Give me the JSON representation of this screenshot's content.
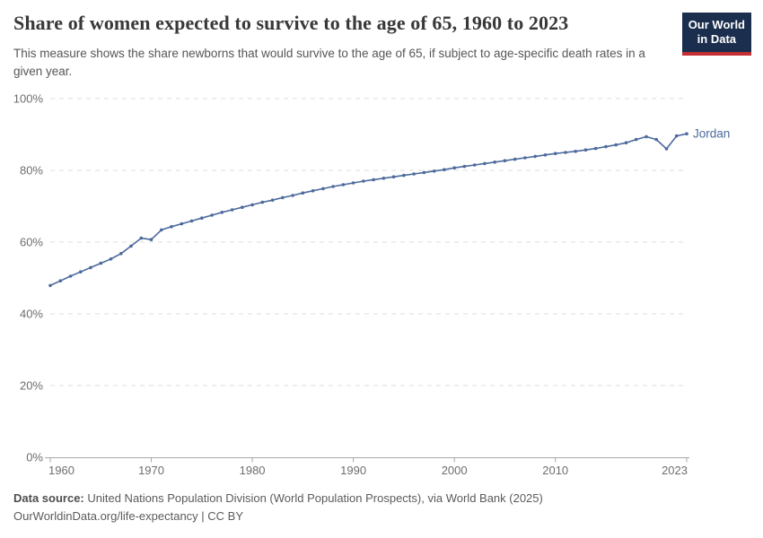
{
  "header": {
    "title": "Share of women expected to survive to the age of 65, 1960 to 2023",
    "subtitle": "This measure shows the share newborns that would survive to the age of 65, if subject to age-specific death rates in a given year.",
    "logo": {
      "line1": "Our World",
      "line2": "in Data",
      "bg_color": "#1b2e4e",
      "accent_color": "#c52f33"
    }
  },
  "chart_data": {
    "type": "line",
    "title": "Share of women expected to survive to the age of 65, 1960 to 2023",
    "xlabel": "",
    "ylabel": "",
    "xlim": [
      1960,
      2023
    ],
    "ylim": [
      0,
      100
    ],
    "grid": "horizontal-dashed",
    "legend_position": "end-of-line-label",
    "x_ticks": [
      1960,
      1970,
      1980,
      1990,
      2000,
      2010,
      2023
    ],
    "x_tick_labels": [
      "1960",
      "1970",
      "1980",
      "1990",
      "2000",
      "2010",
      "2023"
    ],
    "y_ticks": [
      0,
      20,
      40,
      60,
      80,
      100
    ],
    "y_tick_labels": [
      "0%",
      "20%",
      "40%",
      "60%",
      "80%",
      "100%"
    ],
    "series": [
      {
        "name": "Jordan",
        "color": "#4c6a9c",
        "x": [
          1960,
          1961,
          1962,
          1963,
          1964,
          1965,
          1966,
          1967,
          1968,
          1969,
          1970,
          1971,
          1972,
          1973,
          1974,
          1975,
          1976,
          1977,
          1978,
          1979,
          1980,
          1981,
          1982,
          1983,
          1984,
          1985,
          1986,
          1987,
          1988,
          1989,
          1990,
          1991,
          1992,
          1993,
          1994,
          1995,
          1996,
          1997,
          1998,
          1999,
          2000,
          2001,
          2002,
          2003,
          2004,
          2005,
          2006,
          2007,
          2008,
          2009,
          2010,
          2011,
          2012,
          2013,
          2014,
          2015,
          2016,
          2017,
          2018,
          2019,
          2020,
          2021,
          2022,
          2023
        ],
        "values": [
          47.9,
          49.2,
          50.5,
          51.7,
          52.9,
          54.1,
          55.3,
          56.8,
          58.9,
          61.1,
          60.7,
          63.4,
          64.3,
          65.1,
          65.9,
          66.7,
          67.5,
          68.3,
          69.0,
          69.7,
          70.4,
          71.1,
          71.7,
          72.4,
          73.0,
          73.7,
          74.3,
          74.9,
          75.5,
          76.0,
          76.5,
          77.0,
          77.4,
          77.8,
          78.2,
          78.6,
          79.0,
          79.4,
          79.8,
          80.2,
          80.7,
          81.1,
          81.5,
          81.9,
          82.3,
          82.7,
          83.1,
          83.5,
          83.9,
          84.3,
          84.7,
          85.0,
          85.3,
          85.7,
          86.1,
          86.6,
          87.1,
          87.7,
          88.6,
          89.4,
          88.6,
          86.0,
          89.6,
          90.2
        ]
      }
    ],
    "colors": {
      "gridline": "#dedede",
      "axis": "#a8a8a8",
      "tick_label": "#6e6e6e"
    }
  },
  "footer": {
    "datasource_label": "Data source:",
    "datasource_text": " United Nations Population Division (World Population Prospects), via World Bank (2025)",
    "license_line": "OurWorldinData.org/life-expectancy | CC BY"
  }
}
